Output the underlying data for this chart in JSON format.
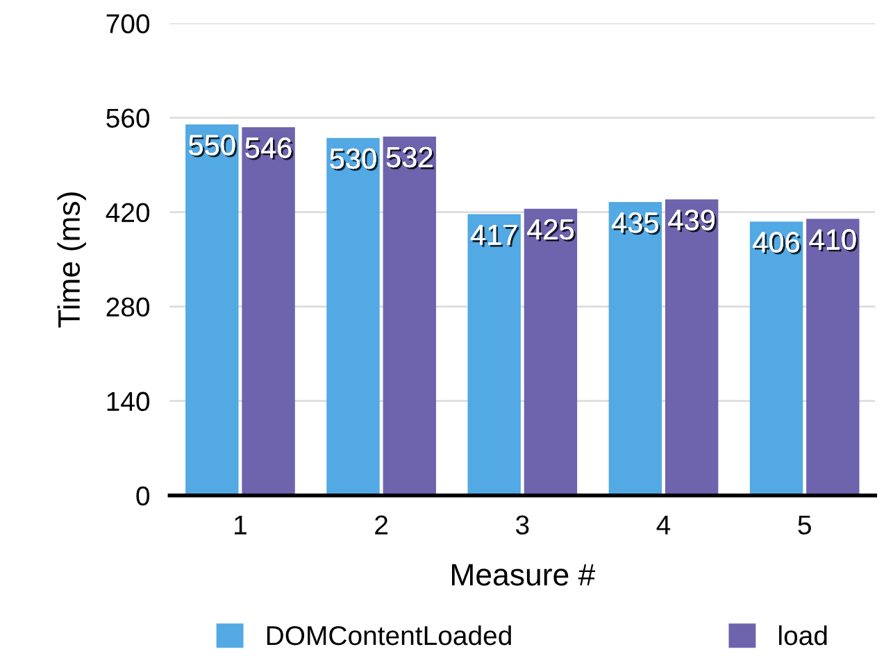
{
  "chart_data": {
    "type": "bar",
    "xlabel": "Measure #",
    "ylabel": "Time (ms)",
    "categories": [
      "1",
      "2",
      "3",
      "4",
      "5"
    ],
    "series": [
      {
        "name": "DOMContentLoaded",
        "color": "#52a9e3",
        "values": [
          550,
          530,
          417,
          435,
          406
        ]
      },
      {
        "name": "load",
        "color": "#6e63ad",
        "values": [
          546,
          532,
          425,
          439,
          410
        ]
      }
    ],
    "ylim": [
      0,
      700
    ],
    "yticks": [
      0,
      140,
      280,
      420,
      560,
      700
    ],
    "grid": "y",
    "legend": "bottom",
    "data_labels": true
  }
}
